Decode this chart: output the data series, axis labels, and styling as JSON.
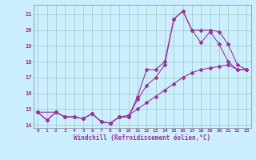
{
  "xlabel": "Windchill (Refroidissement éolien,°C)",
  "bg_color": "#cceeff",
  "line_color": "#993399",
  "grid_color": "#99ccbb",
  "xlim": [
    -0.5,
    23.5
  ],
  "ylim": [
    13.8,
    21.6
  ],
  "yticks": [
    14,
    15,
    16,
    17,
    18,
    19,
    20,
    21
  ],
  "xticks": [
    0,
    1,
    2,
    3,
    4,
    5,
    6,
    7,
    8,
    9,
    10,
    11,
    12,
    13,
    14,
    15,
    16,
    17,
    18,
    19,
    20,
    21,
    22,
    23
  ],
  "series1_x": [
    0,
    1,
    2,
    3,
    4,
    5,
    6,
    7,
    8,
    9,
    10,
    11,
    12,
    13,
    14,
    15,
    16,
    17,
    18,
    19,
    20,
    21,
    22,
    23
  ],
  "series1_y": [
    14.8,
    14.3,
    14.8,
    14.5,
    14.5,
    14.4,
    14.7,
    14.2,
    14.1,
    14.5,
    14.5,
    15.8,
    17.5,
    17.5,
    18.0,
    20.7,
    21.2,
    20.0,
    19.2,
    19.9,
    19.1,
    18.0,
    17.5,
    17.5
  ],
  "series2_x": [
    0,
    2,
    3,
    4,
    5,
    6,
    7,
    8,
    9,
    10,
    11,
    12,
    13,
    14,
    15,
    16,
    17,
    18,
    19,
    20,
    21,
    22,
    23
  ],
  "series2_y": [
    14.8,
    14.8,
    14.5,
    14.5,
    14.4,
    14.7,
    14.2,
    14.1,
    14.5,
    14.5,
    15.6,
    16.5,
    17.0,
    17.8,
    20.7,
    21.2,
    20.0,
    20.0,
    20.0,
    19.9,
    19.1,
    17.8,
    17.5
  ],
  "series3_x": [
    0,
    1,
    2,
    3,
    4,
    5,
    6,
    7,
    8,
    9,
    10,
    11,
    12,
    13,
    14,
    15,
    16,
    17,
    18,
    19,
    20,
    21,
    22,
    23
  ],
  "series3_y": [
    14.8,
    14.3,
    14.8,
    14.5,
    14.5,
    14.4,
    14.7,
    14.2,
    14.1,
    14.5,
    14.6,
    15.0,
    15.4,
    15.8,
    16.2,
    16.6,
    17.0,
    17.3,
    17.5,
    17.6,
    17.7,
    17.8,
    17.5,
    17.5
  ]
}
